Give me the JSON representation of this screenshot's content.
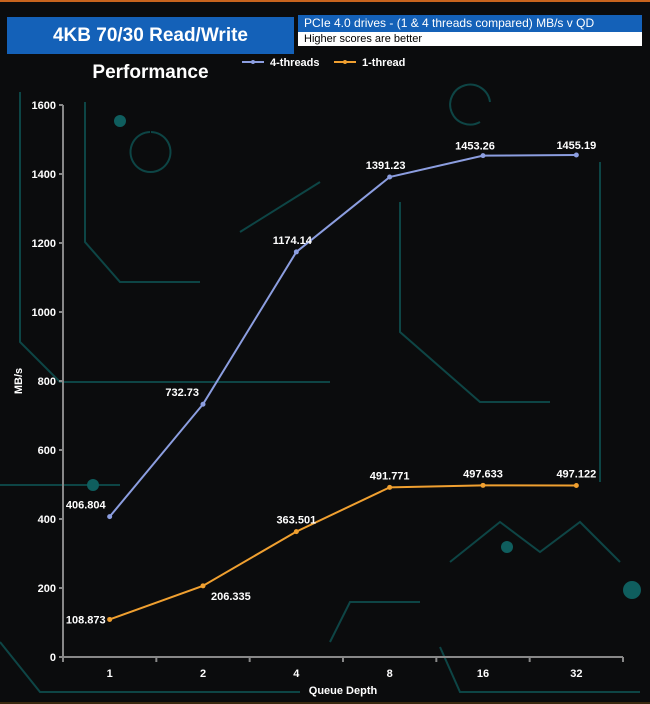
{
  "header": {
    "title": "4KB 70/30 Read/Write Performance",
    "subtitle": "PCIe 4.0 drives - (1 & 4 threads compared) MB/s v QD",
    "note": "Higher scores are better"
  },
  "chart_data": {
    "type": "line",
    "title": "4KB 70/30 Read/Write Performance",
    "xlabel": "Queue Depth",
    "ylabel": "MB/s",
    "categories": [
      "1",
      "2",
      "4",
      "8",
      "16",
      "32"
    ],
    "ylim": [
      0,
      1600
    ],
    "yticks": [
      "0",
      "200",
      "400",
      "600",
      "800",
      "1000",
      "1200",
      "1400",
      "1600"
    ],
    "legend": "top",
    "grid": false,
    "series": [
      {
        "name": "4-threads",
        "color": "#8c9ee0",
        "values": [
          406.804,
          732.73,
          1174.14,
          1391.23,
          1453.26,
          1455.19
        ],
        "labels": [
          "406.804",
          "732.73",
          "1174.14",
          "1391.23",
          "1453.26",
          "1455.19"
        ]
      },
      {
        "name": "1-thread",
        "color": "#f0a030",
        "values": [
          108.873,
          206.335,
          363.501,
          491.771,
          497.633,
          497.122
        ],
        "labels": [
          "108.873",
          "206.335",
          "363.501",
          "491.771",
          "497.633",
          "497.122"
        ]
      }
    ]
  }
}
